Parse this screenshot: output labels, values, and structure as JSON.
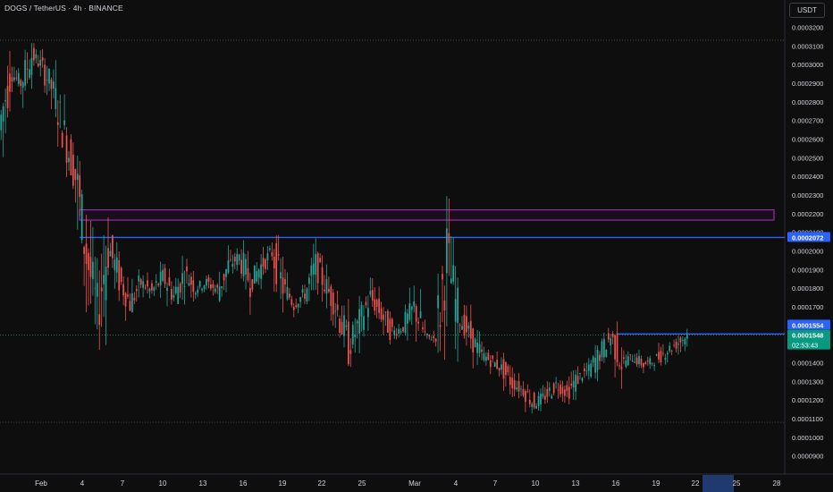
{
  "header": {
    "symbol_title": "DOGS / TetherUS · 4h · BINANCE",
    "currency_button": "USDT"
  },
  "colors": {
    "background": "#0e0e0e",
    "up": "#26a69a",
    "down": "#ef5350",
    "resistance_line": "#2962ff",
    "zone_border": "#9c27b0",
    "badge_blue": "#2962ff",
    "badge_green": "#089981",
    "time_highlight": "#1e3a6e"
  },
  "price_badges": {
    "resistance": "0.0002072",
    "level": "0.0001554",
    "last": "0.0001548",
    "countdown": "02:53:43"
  },
  "chart_data": {
    "type": "candlestick",
    "ylim": [
      8.5e-05,
      0.000325
    ],
    "yticks": [
      "0.0003200",
      "0.0003100",
      "0.0003000",
      "0.0002900",
      "0.0002800",
      "0.0002700",
      "0.0002600",
      "0.0002500",
      "0.0002400",
      "0.0002300",
      "0.0002200",
      "0.0002100",
      "0.0002000",
      "0.0001900",
      "0.0001800",
      "0.0001700",
      "0.0001600",
      "0.0001500",
      "0.0001400",
      "0.0001300",
      "0.0001200",
      "0.0001100",
      "0.0001000",
      "0.0000900"
    ],
    "xticks": [
      "Feb",
      "4",
      "7",
      "10",
      "13",
      "16",
      "19",
      "22",
      "25",
      "Mar",
      "4",
      "7",
      "10",
      "13",
      "16",
      "19",
      "22",
      "25",
      "28"
    ],
    "price_path": [
      [
        0.000265,
        0.000296
      ],
      [
        0.000296,
        0.00029
      ],
      [
        0.00029,
        0.000305
      ],
      [
        0.000305,
        0.000299
      ],
      [
        0.000299,
        0.000285
      ],
      [
        0.000285,
        0.000262
      ],
      [
        0.000262,
        0.00024
      ],
      [
        0.00024,
        0.000198
      ],
      [
        0.000198,
        0.000168
      ],
      [
        0.000168,
        0.000203
      ],
      [
        0.000203,
        0.000185
      ],
      [
        0.000185,
        0.000172
      ],
      [
        0.000172,
        0.000183
      ],
      [
        0.000183,
        0.000178
      ],
      [
        0.000178,
        0.000186
      ],
      [
        0.000186,
        0.000176
      ],
      [
        0.000176,
        0.000188
      ],
      [
        0.000188,
        0.00018
      ],
      [
        0.00018,
        0.000183
      ],
      [
        0.000183,
        0.000179
      ],
      [
        0.000179,
        0.000192
      ],
      [
        0.000192,
        0.000197
      ],
      [
        0.000197,
        0.000183
      ],
      [
        0.000183,
        0.000192
      ],
      [
        0.000192,
        0.000199
      ],
      [
        0.000199,
        0.000181
      ],
      [
        0.000181,
        0.000172
      ],
      [
        0.000172,
        0.000177
      ],
      [
        0.000177,
        0.000192
      ],
      [
        0.000192,
        0.00018
      ],
      [
        0.00018,
        0.000168
      ],
      [
        0.000168,
        0.000148
      ],
      [
        0.000148,
        0.000162
      ],
      [
        0.000162,
        0.000175
      ],
      [
        0.000175,
        0.000166
      ],
      [
        0.000166,
        0.000156
      ],
      [
        0.000156,
        0.000159
      ],
      [
        0.000159,
        0.00017
      ],
      [
        0.00017,
        0.000154
      ],
      [
        0.000154,
        0.000153
      ],
      [
        0.000153,
        0.000198
      ],
      [
        0.000198,
        0.000165
      ],
      [
        0.000165,
        0.000156
      ],
      [
        0.000156,
        0.000145
      ],
      [
        0.000145,
        0.000141
      ],
      [
        0.000141,
        0.000137
      ],
      [
        0.000137,
        0.000129
      ],
      [
        0.000129,
        0.000125
      ],
      [
        0.000125,
        0.000118
      ],
      [
        0.000118,
        0.000122
      ],
      [
        0.000122,
        0.000128
      ],
      [
        0.000128,
        0.000124
      ],
      [
        0.000124,
        0.000132
      ],
      [
        0.000132,
        0.000136
      ],
      [
        0.000136,
        0.000145
      ],
      [
        0.000145,
        0.000154
      ],
      [
        0.000154,
        0.00014
      ],
      [
        0.00014,
        0.000143
      ],
      [
        0.000143,
        0.000139
      ],
      [
        0.000139,
        0.000141
      ],
      [
        0.000141,
        0.000146
      ],
      [
        0.000146,
        0.00015
      ],
      [
        0.00015,
        0.000155
      ]
    ],
    "levels": {
      "top_dotted": 0.000313,
      "bottom_dotted": 0.000108,
      "resistance": 0.0002072,
      "support": 0.0001554,
      "last_dotted": 0.0001548
    },
    "zone": {
      "from": 0.0002165,
      "to": 0.000222
    }
  }
}
